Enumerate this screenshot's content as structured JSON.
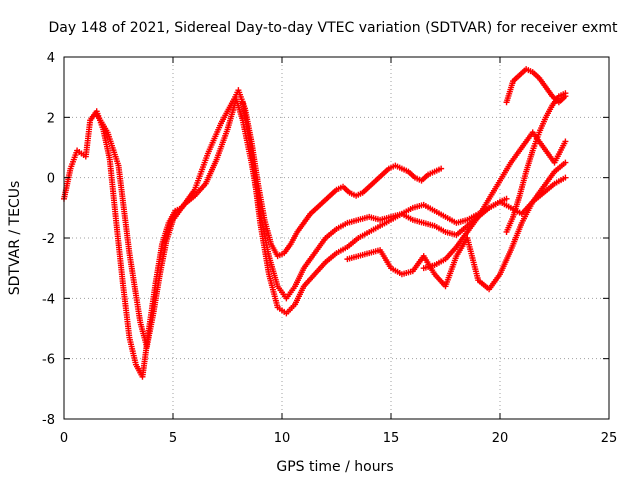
{
  "chart_data": {
    "type": "scatter",
    "title": "Day 148 of 2021, Sidereal Day-to-day VTEC variation (SDTVAR) for receiver exmt",
    "xlabel": "GPS time / hours",
    "ylabel": "SDTVAR / TECUs",
    "xlim": [
      0,
      25
    ],
    "ylim": [
      -8,
      4
    ],
    "xticks": [
      0,
      5,
      10,
      15,
      20,
      25
    ],
    "yticks": [
      -8,
      -6,
      -4,
      -2,
      0,
      2,
      4
    ],
    "grid": true,
    "marker": "+",
    "color": "#ff0000",
    "series": [
      {
        "x": [
          0.0,
          0.3,
          0.6,
          1.0,
          1.2,
          1.5,
          1.8,
          2.1,
          2.4,
          2.7,
          3.0,
          3.3,
          3.6,
          3.9,
          4.2,
          4.5,
          4.8,
          5.1,
          5.4,
          5.7,
          6.0,
          6.3,
          6.6,
          6.9,
          7.2,
          7.5,
          7.8,
          8.0,
          8.3,
          8.6,
          8.9,
          9.2,
          9.5,
          9.8,
          10.1,
          10.4,
          10.7,
          11.0,
          11.3,
          11.6,
          11.9,
          12.2,
          12.5,
          12.8,
          13.1,
          13.4,
          13.7,
          14.0,
          14.3,
          14.6,
          14.9,
          15.2,
          15.5,
          15.8,
          16.1,
          16.4,
          16.7,
          17.0,
          17.3
        ],
        "y": [
          -0.7,
          0.3,
          0.9,
          0.7,
          1.9,
          2.2,
          1.6,
          0.6,
          -1.5,
          -3.5,
          -5.3,
          -6.2,
          -6.6,
          -5.0,
          -3.5,
          -2.2,
          -1.5,
          -1.1,
          -1.0,
          -0.7,
          -0.4,
          0.2,
          0.8,
          1.3,
          1.8,
          2.2,
          2.6,
          2.9,
          2.3,
          1.2,
          -0.2,
          -1.4,
          -2.2,
          -2.6,
          -2.5,
          -2.2,
          -1.8,
          -1.5,
          -1.2,
          -1.0,
          -0.8,
          -0.6,
          -0.4,
          -0.3,
          -0.5,
          -0.6,
          -0.5,
          -0.3,
          -0.1,
          0.1,
          0.3,
          0.4,
          0.3,
          0.2,
          0.0,
          -0.1,
          0.1,
          0.2,
          0.3
        ]
      },
      {
        "x": [
          1.5,
          2.0,
          2.5,
          3.0,
          3.5,
          3.8,
          4.1,
          4.4,
          4.7,
          5.0,
          5.5,
          6.0,
          6.5,
          7.0,
          7.5,
          7.9,
          8.2,
          8.6,
          9.0,
          9.4,
          9.8,
          10.2,
          10.6,
          11.0,
          11.5,
          12.0,
          12.5,
          13.0,
          13.5,
          14.0,
          14.5,
          15.0,
          15.5,
          16.0,
          16.5,
          17.0,
          17.5,
          18.0,
          18.5,
          19.0,
          19.5,
          20.0,
          20.3
        ],
        "y": [
          2.1,
          1.5,
          0.4,
          -2.5,
          -4.8,
          -5.6,
          -4.5,
          -3.2,
          -2.1,
          -1.4,
          -0.9,
          -0.6,
          -0.2,
          0.6,
          1.6,
          2.6,
          1.9,
          0.5,
          -1.2,
          -2.6,
          -3.6,
          -4.0,
          -3.6,
          -3.0,
          -2.5,
          -2.0,
          -1.7,
          -1.5,
          -1.4,
          -1.3,
          -1.4,
          -1.3,
          -1.2,
          -1.4,
          -1.5,
          -1.6,
          -1.8,
          -1.9,
          -1.6,
          -1.3,
          -1.0,
          -0.8,
          -0.7
        ]
      },
      {
        "x": [
          8.2,
          8.6,
          9.0,
          9.4,
          9.8,
          10.2,
          10.6,
          11.0,
          11.5,
          12.0,
          12.5,
          13.0,
          13.5,
          14.0,
          14.5,
          15.0,
          15.5,
          16.0,
          16.5,
          17.0,
          17.5,
          18.0,
          18.5,
          19.0,
          19.5,
          20.0,
          20.5,
          21.0,
          21.5,
          22.0,
          22.5,
          23.0
        ],
        "y": [
          2.5,
          0.8,
          -1.5,
          -3.2,
          -4.3,
          -4.5,
          -4.2,
          -3.6,
          -3.2,
          -2.8,
          -2.5,
          -2.3,
          -2.0,
          -1.8,
          -1.6,
          -1.4,
          -1.2,
          -1.0,
          -0.9,
          -1.1,
          -1.3,
          -1.5,
          -1.4,
          -1.2,
          -1.0,
          -0.8,
          -1.0,
          -1.2,
          -0.8,
          -0.3,
          0.2,
          0.5
        ]
      },
      {
        "x": [
          13.0,
          13.5,
          14.0,
          14.5,
          15.0,
          15.5,
          16.0,
          16.5,
          17.0,
          17.5,
          18.0,
          18.5,
          19.0,
          19.5,
          20.0,
          20.5,
          21.0,
          21.5,
          22.0,
          22.5,
          23.0
        ],
        "y": [
          -2.7,
          -2.6,
          -2.5,
          -2.4,
          -3.0,
          -3.2,
          -3.1,
          -2.6,
          -3.2,
          -3.6,
          -2.6,
          -2.0,
          -3.4,
          -3.7,
          -3.2,
          -2.4,
          -1.5,
          -0.8,
          -0.5,
          -0.2,
          0.0
        ]
      },
      {
        "x": [
          16.5,
          17.0,
          17.5,
          18.0,
          18.5,
          19.0,
          19.5,
          20.0,
          20.5,
          21.0,
          21.5,
          22.0,
          22.5,
          23.0
        ],
        "y": [
          -3.0,
          -2.9,
          -2.7,
          -2.3,
          -1.8,
          -1.3,
          -0.7,
          -0.1,
          0.5,
          1.0,
          1.5,
          1.0,
          0.5,
          1.2
        ]
      },
      {
        "x": [
          20.3,
          20.6,
          20.9,
          21.2,
          21.5,
          21.8,
          22.1,
          22.4,
          22.7,
          23.0
        ],
        "y": [
          2.5,
          3.2,
          3.4,
          3.6,
          3.5,
          3.3,
          3.0,
          2.7,
          2.5,
          2.7
        ]
      },
      {
        "x": [
          20.3,
          20.6,
          20.9,
          21.2,
          21.5,
          21.8,
          22.1,
          22.4,
          22.7,
          23.0
        ],
        "y": [
          -1.8,
          -1.3,
          -0.6,
          0.2,
          0.9,
          1.5,
          2.0,
          2.4,
          2.7,
          2.8
        ]
      }
    ]
  }
}
